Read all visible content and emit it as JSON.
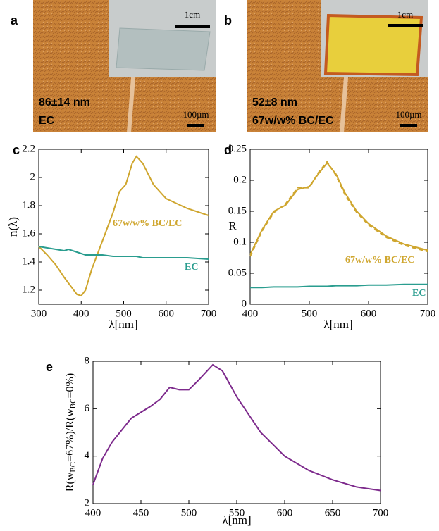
{
  "panels": [
    {
      "letter": "a",
      "thickness": "86±14 nm",
      "sample": "EC",
      "inset_scale": "1cm",
      "scale": "100µm"
    },
    {
      "letter": "b",
      "thickness": "52±8 nm",
      "sample": "67w/w% BC/EC",
      "inset_scale": "1cm",
      "scale": "100µm"
    }
  ],
  "chart_data": [
    {
      "type": "line",
      "letter": "c",
      "ylabel": "n(λ)",
      "xlabel": "λ[nm]",
      "x": [
        300,
        320,
        340,
        360,
        370,
        380,
        390,
        400,
        410,
        425,
        450,
        475,
        490,
        505,
        520,
        530,
        545,
        570,
        600,
        650,
        700
      ],
      "series": [
        {
          "name": "67w/w% BC/EC",
          "color": "#cfa62e",
          "values": [
            1.51,
            1.45,
            1.38,
            1.29,
            1.25,
            1.21,
            1.17,
            1.16,
            1.2,
            1.35,
            1.55,
            1.75,
            1.9,
            1.95,
            2.1,
            2.15,
            2.1,
            1.95,
            1.85,
            1.78,
            1.73
          ]
        },
        {
          "name": "EC",
          "color": "#2a9d8f",
          "values": [
            1.51,
            1.5,
            1.49,
            1.48,
            1.49,
            1.48,
            1.47,
            1.46,
            1.45,
            1.45,
            1.45,
            1.44,
            1.44,
            1.44,
            1.44,
            1.44,
            1.43,
            1.43,
            1.43,
            1.43,
            1.42
          ]
        }
      ],
      "xlim": [
        300,
        700
      ],
      "xticks": [
        300,
        400,
        500,
        600,
        700
      ],
      "ylim": [
        1.1,
        2.2
      ],
      "yticks": [
        1.2,
        1.4,
        1.6,
        1.8,
        2,
        2.2
      ]
    },
    {
      "type": "line",
      "letter": "d",
      "ylabel": "R",
      "xlabel": "λ[nm]",
      "x": [
        400,
        420,
        440,
        460,
        480,
        500,
        515,
        530,
        545,
        560,
        580,
        600,
        630,
        660,
        700
      ],
      "series": [
        {
          "name": "67w/w% BC/EC",
          "color": "#cfa62e",
          "values": [
            0.08,
            0.12,
            0.15,
            0.16,
            0.185,
            0.19,
            0.21,
            0.228,
            0.21,
            0.18,
            0.15,
            0.13,
            0.11,
            0.097,
            0.087
          ]
        },
        {
          "color": "#cfa62e",
          "dashed": true,
          "values": [
            0.077,
            0.118,
            0.148,
            0.162,
            0.188,
            0.188,
            0.212,
            0.23,
            0.208,
            0.177,
            0.148,
            0.128,
            0.108,
            0.095,
            0.085
          ]
        },
        {
          "name": "EC",
          "color": "#2a9d8f",
          "values": [
            0.027,
            0.027,
            0.028,
            0.028,
            0.028,
            0.029,
            0.029,
            0.029,
            0.03,
            0.03,
            0.03,
            0.031,
            0.031,
            0.032,
            0.032
          ]
        }
      ],
      "xlim": [
        400,
        700
      ],
      "xticks": [
        400,
        500,
        600,
        700
      ],
      "ylim": [
        0,
        0.25
      ],
      "yticks": [
        0,
        0.05,
        0.1,
        0.15,
        0.2,
        0.25
      ]
    },
    {
      "type": "line",
      "letter": "e",
      "ylabel": [
        "R(w",
        "BC",
        "=67%)/R(w",
        "BC",
        "=0%)"
      ],
      "xlabel": "λ[nm]",
      "x": [
        400,
        410,
        420,
        440,
        460,
        470,
        480,
        490,
        500,
        510,
        525,
        535,
        550,
        575,
        600,
        625,
        650,
        675,
        700
      ],
      "series": [
        {
          "color": "#7d2a8c",
          "values": [
            2.8,
            3.9,
            4.6,
            5.6,
            6.1,
            6.4,
            6.9,
            6.8,
            6.8,
            7.2,
            7.85,
            7.6,
            6.5,
            5.0,
            4.0,
            3.4,
            3.0,
            2.7,
            2.55
          ]
        }
      ],
      "xlim": [
        400,
        700
      ],
      "xticks": [
        400,
        450,
        500,
        550,
        600,
        650,
        700
      ],
      "ylim": [
        2,
        8
      ],
      "yticks": [
        2,
        4,
        6,
        8
      ]
    }
  ]
}
